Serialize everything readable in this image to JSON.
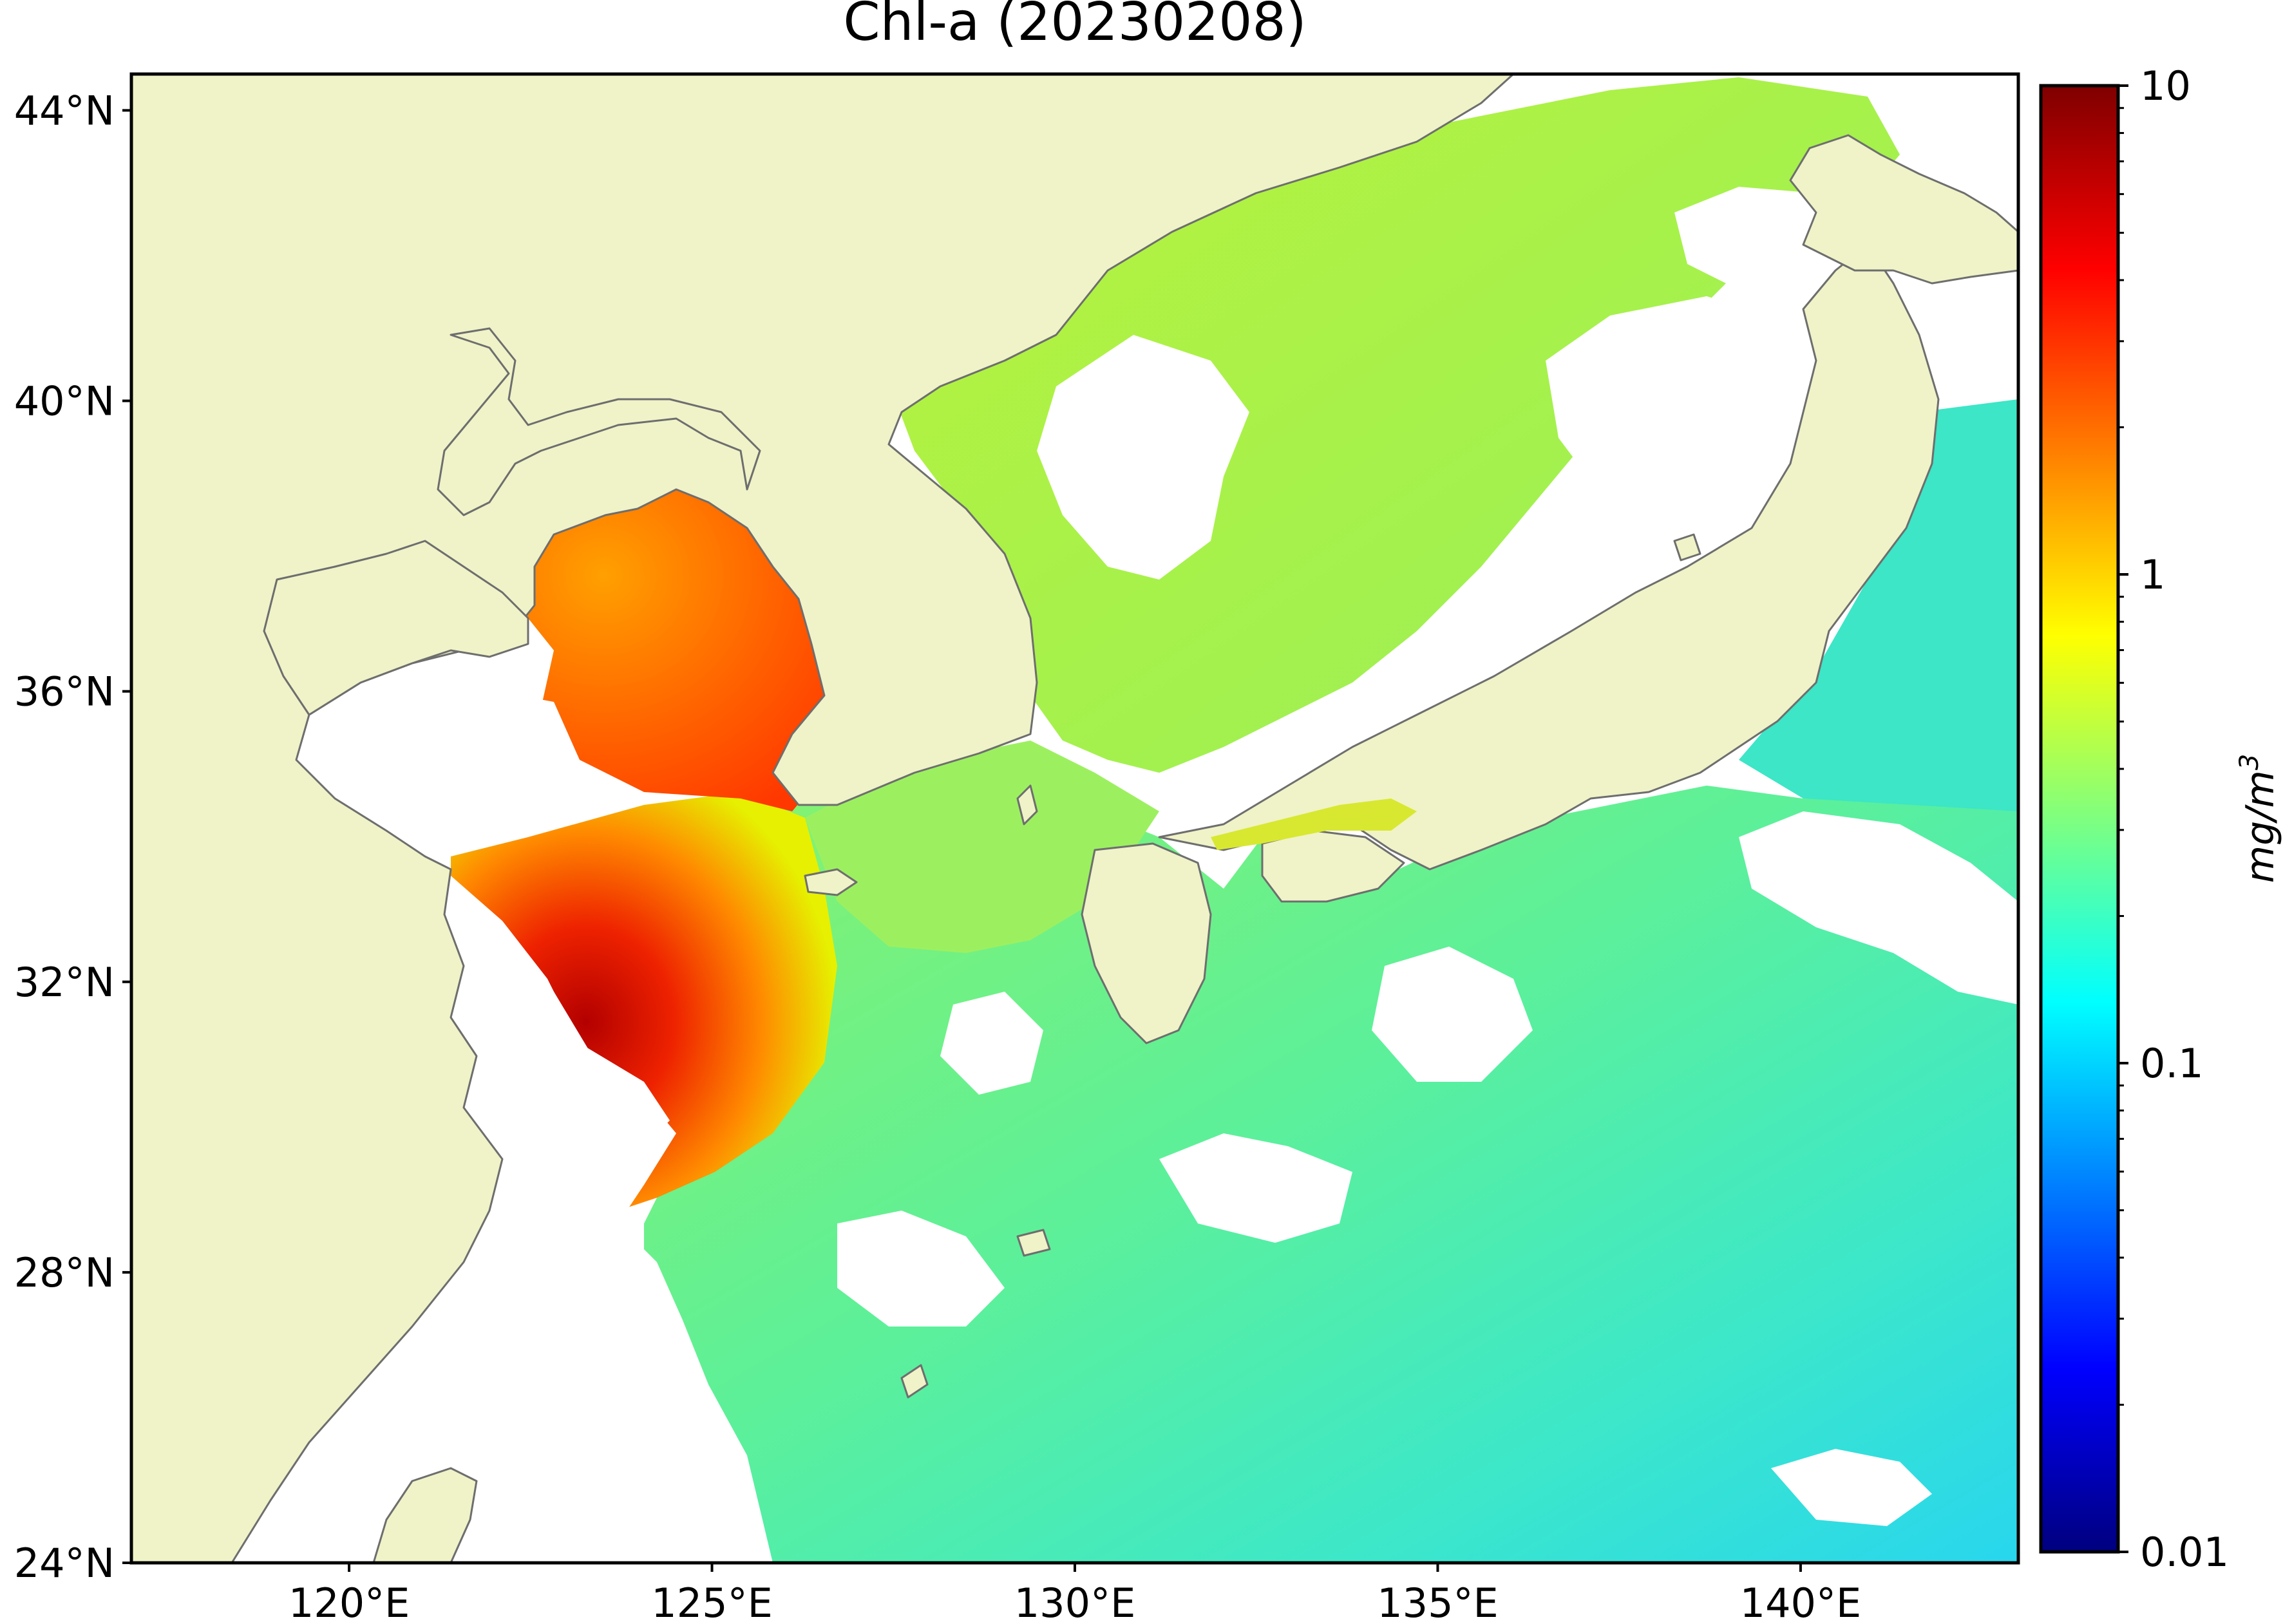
{
  "title": "Chl-a (20230208)",
  "map": {
    "lon_range": [
      117,
      143
    ],
    "lat_range": [
      24,
      44.5
    ],
    "lat_ticks": [
      {
        "value": 44,
        "label": "44°N"
      },
      {
        "value": 40,
        "label": "40°N"
      },
      {
        "value": 36,
        "label": "36°N"
      },
      {
        "value": 32,
        "label": "32°N"
      },
      {
        "value": 28,
        "label": "28°N"
      },
      {
        "value": 24,
        "label": "24°N"
      }
    ],
    "lon_ticks": [
      {
        "value": 120,
        "label": "120°E"
      },
      {
        "value": 125,
        "label": "125°E"
      },
      {
        "value": 130,
        "label": "130°E"
      },
      {
        "value": 135,
        "label": "135°E"
      },
      {
        "value": 140,
        "label": "140°E"
      }
    ],
    "colors": {
      "land": "#f0f3c8",
      "no_data": "#ffffff",
      "coastline": "#6e6e6e"
    }
  },
  "colorbar": {
    "scale": "log",
    "range": [
      0.01,
      10
    ],
    "ticks": [
      {
        "value": 10,
        "label": "10"
      },
      {
        "value": 1,
        "label": "1"
      },
      {
        "value": 0.1,
        "label": "0.1"
      },
      {
        "value": 0.01,
        "label": "0.01"
      }
    ],
    "colormap": "jet",
    "colormap_colors": [
      "#00007f",
      "#0000ff",
      "#007fff",
      "#00ffff",
      "#7fff7f",
      "#ffff00",
      "#ff7f00",
      "#ff0000",
      "#7f0000"
    ],
    "label": "mg/m",
    "label_sup": "3"
  }
}
